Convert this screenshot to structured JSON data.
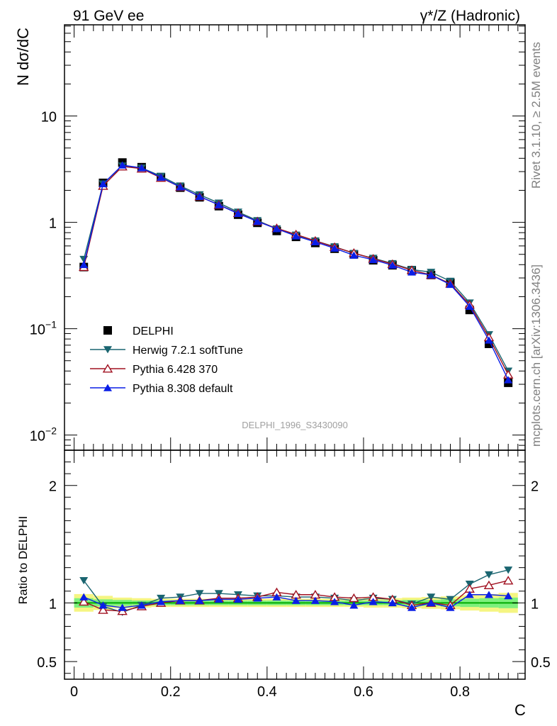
{
  "header": {
    "left": "91 GeV ee",
    "right_prefix": "γ*/Z",
    "right_suffix": " (Hadronic)"
  },
  "side_text": {
    "rivet": "Rivet 3.1.10, ≥ 2.5M events",
    "mcplots": "mcplots.cern.ch [arXiv:1306.3436]"
  },
  "analysis_label": "DELPHI_1996_S3430090",
  "colors": {
    "data": "#000000",
    "herwig": "#1a6570",
    "pythia6": "#a01020",
    "pythia8": "#0a1ee6",
    "band_inner": "#7df07d",
    "band_outer": "#f5f582",
    "unity_line": "#00aa00"
  },
  "chart_data": [
    {
      "type": "line",
      "panel": "main",
      "ylabel": "N dσ/dC",
      "xlabel": "",
      "y_scale": "log",
      "xlim": [
        -0.02,
        0.935
      ],
      "ylim": [
        0.0072,
        72
      ],
      "y_ticks": [
        {
          "value": 10,
          "label": "10",
          "exp": ""
        },
        {
          "value": 1,
          "label": "1",
          "exp": ""
        },
        {
          "value": 0.1,
          "label": "10",
          "exp": "−1"
        },
        {
          "value": 0.01,
          "label": "10",
          "exp": "−2"
        }
      ],
      "legend_position": "lower-left",
      "x": [
        0.02,
        0.06,
        0.1,
        0.14,
        0.18,
        0.22,
        0.26,
        0.3,
        0.34,
        0.38,
        0.42,
        0.46,
        0.5,
        0.54,
        0.58,
        0.62,
        0.66,
        0.7,
        0.74,
        0.78,
        0.82,
        0.86,
        0.9
      ],
      "series": [
        {
          "name": "DELPHI",
          "key": "data",
          "marker": "square",
          "values": [
            0.38,
            2.35,
            3.65,
            3.3,
            2.65,
            2.12,
            1.72,
            1.42,
            1.18,
            0.99,
            0.83,
            0.73,
            0.64,
            0.565,
            0.5,
            0.44,
            0.395,
            0.355,
            0.32,
            0.27,
            0.15,
            0.072,
            0.031
          ]
        },
        {
          "name": "Herwig 7.2.1 softTune",
          "key": "herwig",
          "marker": "triangle-down",
          "values": [
            0.45,
            2.3,
            3.4,
            3.25,
            2.72,
            2.2,
            1.82,
            1.52,
            1.25,
            1.04,
            0.87,
            0.76,
            0.67,
            0.59,
            0.51,
            0.46,
            0.41,
            0.36,
            0.34,
            0.28,
            0.175,
            0.088,
            0.04
          ]
        },
        {
          "name": "Pythia 6.428 370",
          "key": "pythia6",
          "marker": "triangle-open",
          "values": [
            0.38,
            2.2,
            3.35,
            3.2,
            2.62,
            2.15,
            1.75,
            1.46,
            1.22,
            1.02,
            0.88,
            0.77,
            0.67,
            0.585,
            0.515,
            0.455,
            0.405,
            0.355,
            0.32,
            0.265,
            0.168,
            0.083,
            0.037
          ]
        },
        {
          "name": "Pythia 8.308 default",
          "key": "pythia8",
          "marker": "triangle-up",
          "values": [
            0.4,
            2.3,
            3.45,
            3.25,
            2.65,
            2.15,
            1.75,
            1.46,
            1.21,
            1.02,
            0.87,
            0.745,
            0.655,
            0.57,
            0.49,
            0.445,
            0.395,
            0.34,
            0.32,
            0.26,
            0.162,
            0.078,
            0.033
          ]
        }
      ]
    },
    {
      "type": "line",
      "panel": "ratio",
      "ylabel": "Ratio to DELPHI",
      "xlabel": "C",
      "xlim": [
        -0.02,
        0.935
      ],
      "ylim": [
        0.35,
        2.3
      ],
      "x_ticks": [
        0,
        0.2,
        0.4,
        0.6,
        0.8
      ],
      "x_tick_labels": [
        "0",
        "0.2",
        "0.4",
        "0.6",
        "0.8"
      ],
      "y_ticks": [
        0.5,
        1,
        2
      ],
      "y_tick_labels": [
        "0.5",
        "1",
        "2"
      ],
      "x": [
        0.02,
        0.06,
        0.1,
        0.14,
        0.18,
        0.22,
        0.26,
        0.3,
        0.34,
        0.38,
        0.42,
        0.46,
        0.5,
        0.54,
        0.58,
        0.62,
        0.66,
        0.7,
        0.74,
        0.78,
        0.82,
        0.86,
        0.9
      ],
      "band_outer": [
        0.075,
        0.06,
        0.045,
        0.04,
        0.035,
        0.035,
        0.035,
        0.035,
        0.035,
        0.035,
        0.035,
        0.035,
        0.035,
        0.035,
        0.035,
        0.04,
        0.04,
        0.045,
        0.05,
        0.055,
        0.065,
        0.075,
        0.085
      ],
      "band_inner": [
        0.04,
        0.03,
        0.025,
        0.02,
        0.02,
        0.02,
        0.02,
        0.02,
        0.02,
        0.02,
        0.02,
        0.02,
        0.02,
        0.02,
        0.02,
        0.02,
        0.02,
        0.025,
        0.025,
        0.03,
        0.035,
        0.04,
        0.045
      ],
      "series": [
        {
          "name": "Herwig 7.2.1 softTune",
          "key": "herwig",
          "marker": "triangle-down",
          "values": [
            1.19,
            0.97,
            0.92,
            0.98,
            1.04,
            1.05,
            1.08,
            1.08,
            1.07,
            1.06,
            1.06,
            1.05,
            1.05,
            1.04,
            1.02,
            1.04,
            1.03,
            0.99,
            1.05,
            1.03,
            1.16,
            1.24,
            1.28
          ]
        },
        {
          "name": "Pythia 6.428 370",
          "key": "pythia6",
          "marker": "triangle-open",
          "values": [
            1.01,
            0.94,
            0.93,
            0.97,
            1.0,
            1.02,
            1.02,
            1.04,
            1.04,
            1.05,
            1.09,
            1.07,
            1.07,
            1.05,
            1.04,
            1.05,
            1.03,
            0.98,
            1.0,
            0.98,
            1.12,
            1.15,
            1.19
          ]
        },
        {
          "name": "Pythia 8.308 default",
          "key": "pythia8",
          "marker": "triangle-up",
          "values": [
            1.05,
            0.98,
            0.96,
            0.98,
            1.01,
            1.02,
            1.02,
            1.03,
            1.03,
            1.04,
            1.05,
            1.02,
            1.02,
            1.01,
            0.98,
            1.01,
            1.0,
            0.96,
            1.0,
            0.96,
            1.07,
            1.07,
            1.06
          ]
        }
      ]
    }
  ]
}
